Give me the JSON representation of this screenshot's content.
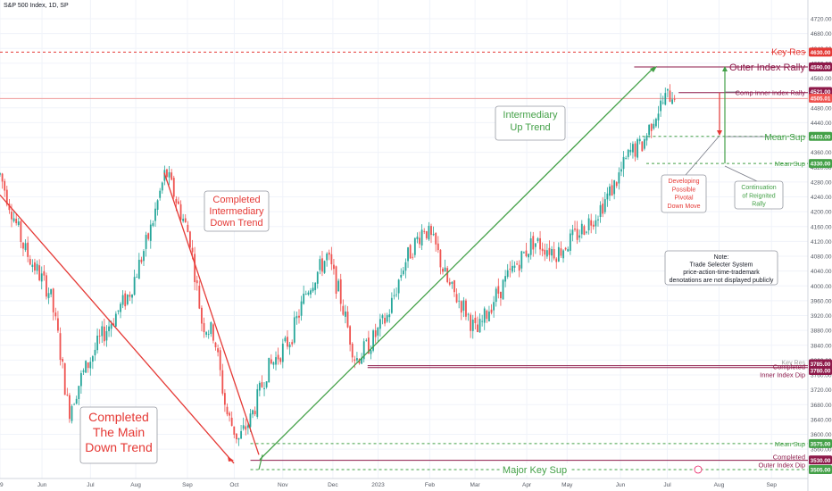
{
  "chart_data": {
    "type": "candlestick",
    "title": "S&P 500 Index, 1D, SP",
    "ylim": [
      3505,
      4730
    ],
    "y_ticks": [
      3560,
      3600,
      3640,
      3680,
      3720,
      3760,
      3800,
      3840,
      3880,
      3920,
      3960,
      4000,
      4040,
      4080,
      4120,
      4160,
      4200,
      4240,
      4280,
      4320,
      4360,
      4400,
      4440,
      4480,
      4520,
      4560,
      4600,
      4640,
      4680,
      4720
    ],
    "x_ticks": [
      {
        "label": "9",
        "t": 0
      },
      {
        "label": "Jun",
        "t": 0.052
      },
      {
        "label": "Jul",
        "t": 0.112
      },
      {
        "label": "Aug",
        "t": 0.168
      },
      {
        "label": "Sep",
        "t": 0.232
      },
      {
        "label": "Oct",
        "t": 0.29
      },
      {
        "label": "Nov",
        "t": 0.35
      },
      {
        "label": "Dec",
        "t": 0.412
      },
      {
        "label": "2023",
        "t": 0.468
      },
      {
        "label": "Feb",
        "t": 0.532
      },
      {
        "label": "Mar",
        "t": 0.588
      },
      {
        "label": "Apr",
        "t": 0.652
      },
      {
        "label": "May",
        "t": 0.702
      },
      {
        "label": "Jun",
        "t": 0.768
      },
      {
        "label": "Jul",
        "t": 0.826
      },
      {
        "label": "Aug",
        "t": 0.89
      },
      {
        "label": "Sep",
        "t": 0.955
      }
    ],
    "colors": {
      "up": "#26a69a",
      "down": "#ef5350",
      "red": "#e53935",
      "green": "#43a047",
      "maroon": "#8e1a4a",
      "grid": "#f0f3fa",
      "axis_text": "#555a64"
    },
    "anchors": [
      {
        "t": 0.0,
        "p": 4300
      },
      {
        "t": 0.03,
        "p": 4100
      },
      {
        "t": 0.062,
        "p": 3980
      },
      {
        "t": 0.072,
        "p": 3860
      },
      {
        "t": 0.085,
        "p": 3660
      },
      {
        "t": 0.1,
        "p": 3750
      },
      {
        "t": 0.125,
        "p": 3860
      },
      {
        "t": 0.16,
        "p": 3980
      },
      {
        "t": 0.185,
        "p": 4140
      },
      {
        "t": 0.205,
        "p": 4310
      },
      {
        "t": 0.22,
        "p": 4220
      },
      {
        "t": 0.235,
        "p": 4130
      },
      {
        "t": 0.25,
        "p": 3900
      },
      {
        "t": 0.265,
        "p": 3870
      },
      {
        "t": 0.28,
        "p": 3660
      },
      {
        "t": 0.295,
        "p": 3585
      },
      {
        "t": 0.31,
        "p": 3640
      },
      {
        "t": 0.33,
        "p": 3770
      },
      {
        "t": 0.36,
        "p": 3860
      },
      {
        "t": 0.38,
        "p": 3990
      },
      {
        "t": 0.405,
        "p": 4080
      },
      {
        "t": 0.42,
        "p": 3980
      },
      {
        "t": 0.44,
        "p": 3800
      },
      {
        "t": 0.46,
        "p": 3850
      },
      {
        "t": 0.48,
        "p": 3920
      },
      {
        "t": 0.5,
        "p": 4060
      },
      {
        "t": 0.525,
        "p": 4160
      },
      {
        "t": 0.54,
        "p": 4100
      },
      {
        "t": 0.555,
        "p": 4000
      },
      {
        "t": 0.575,
        "p": 3940
      },
      {
        "t": 0.59,
        "p": 3870
      },
      {
        "t": 0.61,
        "p": 3960
      },
      {
        "t": 0.64,
        "p": 4060
      },
      {
        "t": 0.66,
        "p": 4120
      },
      {
        "t": 0.69,
        "p": 4090
      },
      {
        "t": 0.715,
        "p": 4140
      },
      {
        "t": 0.74,
        "p": 4200
      },
      {
        "t": 0.76,
        "p": 4270
      },
      {
        "t": 0.78,
        "p": 4360
      },
      {
        "t": 0.795,
        "p": 4380
      },
      {
        "t": 0.81,
        "p": 4460
      },
      {
        "t": 0.825,
        "p": 4510
      },
      {
        "t": 0.835,
        "p": 4521
      }
    ],
    "price_labels": [
      {
        "text": "4630.00",
        "p": 4630,
        "bg": "#e53935"
      },
      {
        "text": "4590.00",
        "p": 4590,
        "bg": "#8e1a4a"
      },
      {
        "text": "4521.00",
        "p": 4524,
        "bg": "#8e1a4a"
      },
      {
        "text": "4505.01",
        "p": 4506,
        "bg": "#ef5350"
      },
      {
        "text": "4403.00",
        "p": 4403,
        "bg": "#43a047"
      },
      {
        "text": "4330.00",
        "p": 4330,
        "bg": "#43a047"
      },
      {
        "text": "3785.00",
        "p": 3790,
        "bg": "#8e1a4a"
      },
      {
        "text": "3780.00",
        "p": 3772,
        "bg": "#8e1a4a"
      },
      {
        "text": "3575.00",
        "p": 3575,
        "bg": "#43a047"
      },
      {
        "text": "3530.00",
        "p": 3531,
        "bg": "#8e1a4a"
      },
      {
        "text": "3505.00",
        "p": 3505,
        "bg": "#43a047"
      }
    ],
    "level_lines": [
      {
        "name": "Key Res",
        "p": 4630,
        "from": 0.0,
        "color": "#e53935",
        "dash": "3,3"
      },
      {
        "name": "Outer Index Rally",
        "p": 4590,
        "from": 0.785,
        "color": "#8e1a4a",
        "dash": ""
      },
      {
        "name": "Comp Inner Index Rally",
        "p": 4521,
        "from": 0.84,
        "color": "#8e1a4a",
        "dash": ""
      },
      {
        "name": "current",
        "p": 4505,
        "from": 0.0,
        "color": "#ef9a9a",
        "dash": ""
      },
      {
        "name": "Mean Sup",
        "p": 4403,
        "from": 0.795,
        "color": "#43a047",
        "dash": "3,3"
      },
      {
        "name": "Mean Sup",
        "p": 4330,
        "from": 0.8,
        "color": "#43a047",
        "dash": "3,3"
      },
      {
        "name": "Key Res",
        "p": 3785,
        "from": 0.455,
        "color": "#8e1a4a",
        "dash": ""
      },
      {
        "name": "Completed Inner Index Dip",
        "p": 3780,
        "from": 0.455,
        "color": "#8e1a4a",
        "dash": ""
      },
      {
        "name": "Mean Sup",
        "p": 3575,
        "from": 0.31,
        "color": "#43a047",
        "dash": "3,3"
      },
      {
        "name": "Completed Outer Index Dip",
        "p": 3530,
        "from": 0.31,
        "color": "#8e1a4a",
        "dash": ""
      },
      {
        "name": "Major Key Sup",
        "p": 3505,
        "from": 0.31,
        "color": "#43a047",
        "dash": "3,3"
      }
    ],
    "labels": {
      "key_res_top": "Key Res",
      "outer_index_rally": "Outer Index Rally",
      "comp_inner_index_rally": "Comp Inner Index Rally",
      "mean_sup_1": "Mean Sup",
      "mean_sup_2": "Mean Sup",
      "key_res_low": "Key Res",
      "completed_inner_1": "Completed",
      "completed_inner_2": "Inner Index Dip",
      "mean_sup_low": "Mean Sup",
      "completed_outer_1": "Completed",
      "completed_outer_2": "Outer Index Dip",
      "major_key_sup": "Major Key Sup",
      "intermediary_up": [
        "Intermediary",
        "Up Trend"
      ],
      "completed_intermediary": [
        "Completed",
        "Intermediary",
        "Down Trend"
      ],
      "completed_main": [
        "Completed",
        "The Main",
        "Down Trend"
      ],
      "developing": [
        "Developing",
        "Possible",
        "Pivotal",
        "Down Move"
      ],
      "continuation": [
        "Continuation",
        "of Reignited",
        "Rally"
      ],
      "note": [
        "Note:",
        "Trade Selecter System",
        "price-action-time-trademark",
        "denotations are not displayed publicly"
      ]
    }
  }
}
